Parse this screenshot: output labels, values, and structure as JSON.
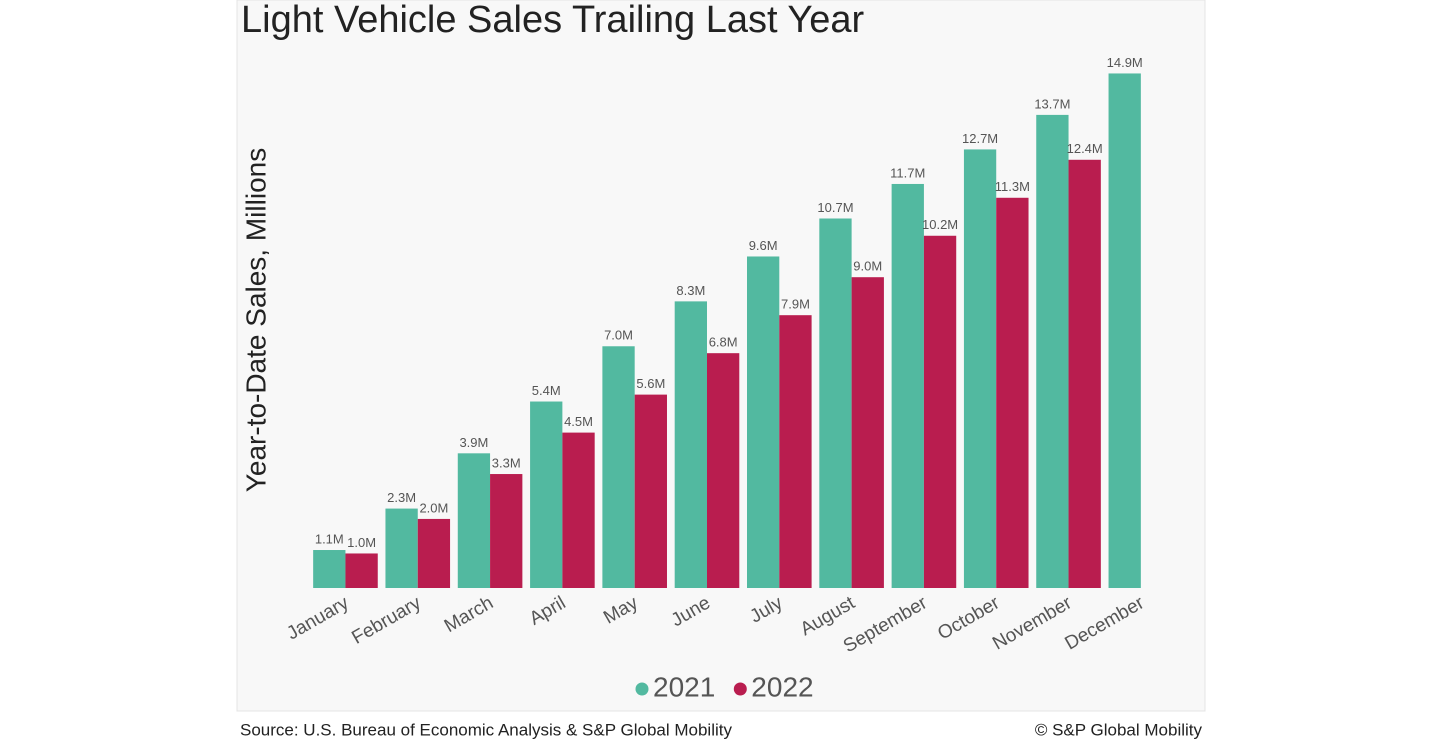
{
  "chart_data": {
    "type": "bar",
    "title": "Light Vehicle Sales Trailing Last Year",
    "y_label": "Year-to-Date Sales, Millions",
    "categories": [
      "January",
      "February",
      "March",
      "April",
      "May",
      "June",
      "July",
      "August",
      "September",
      "October",
      "November",
      "December"
    ],
    "series": [
      {
        "name": "2021",
        "color": "#52b9a0",
        "values": [
          1.1,
          2.3,
          3.9,
          5.4,
          7.0,
          8.3,
          9.6,
          10.7,
          11.7,
          12.7,
          13.7,
          14.9
        ],
        "value_labels": [
          "1.1M",
          "2.3M",
          "3.9M",
          "5.4M",
          "7.0M",
          "8.3M",
          "9.6M",
          "10.7M",
          "11.7M",
          "12.7M",
          "13.7M",
          "14.9M"
        ]
      },
      {
        "name": "2022",
        "color": "#b91d4f",
        "values": [
          1.0,
          2.0,
          3.3,
          4.5,
          5.6,
          6.8,
          7.9,
          9.0,
          10.2,
          11.3,
          12.4,
          null
        ],
        "value_labels": [
          "1.0M",
          "2.0M",
          "3.3M",
          "4.5M",
          "5.6M",
          "6.8M",
          "7.9M",
          "9.0M",
          "10.2M",
          "11.3M",
          "12.4M",
          null
        ]
      }
    ],
    "ylim": [
      0,
      15
    ],
    "legend": "bottom",
    "source": "Source: U.S. Bureau of Economic Analysis & S&P Global Mobility",
    "copyright": "© S&P Global Mobility"
  }
}
